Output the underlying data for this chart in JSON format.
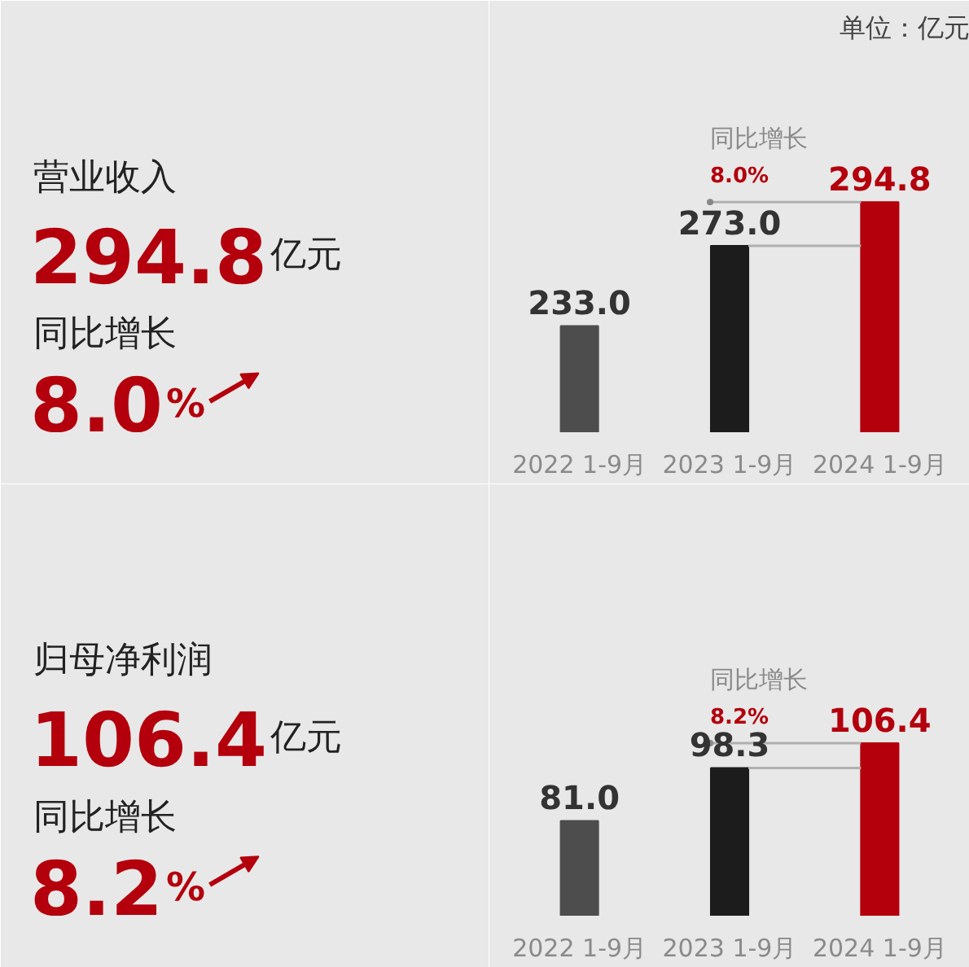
{
  "chart_data": [
    {
      "type": "other",
      "title": "营业收入",
      "annotations": [
        "294.8亿元",
        "同比增长",
        "8.0%"
      ]
    },
    {
      "type": "bar",
      "subtitle": "单位：亿元",
      "categories": [
        "2022 1-9月",
        "2023 1-9月",
        "2024 1-9月"
      ],
      "values": [
        233.0,
        273.0,
        294.8
      ],
      "value_labels": [
        "233.0",
        "273.0",
        "294.8"
      ],
      "colors": [
        "#4d4d4d",
        "#1c1c1c",
        "#b3000c"
      ],
      "ylim": [
        180,
        370
      ],
      "tick_labels": "x",
      "annotations": [
        "同比增长",
        "8.0%"
      ]
    },
    {
      "type": "other",
      "title": "归母净利润",
      "annotations": [
        "106.4亿元",
        "同比增长",
        "8.2%"
      ]
    },
    {
      "type": "bar",
      "categories": [
        "2022 1-9月",
        "2023 1-9月",
        "2024 1-9月"
      ],
      "values": [
        81.0,
        98.3,
        106.4
      ],
      "value_labels": [
        "81.0",
        "98.3",
        "106.4"
      ],
      "colors": [
        "#4d4d4d",
        "#1c1c1c",
        "#b3000c"
      ],
      "ylim": [
        50,
        175
      ],
      "tick_labels": "x",
      "annotations": [
        "同比增长",
        "8.2%"
      ]
    }
  ]
}
